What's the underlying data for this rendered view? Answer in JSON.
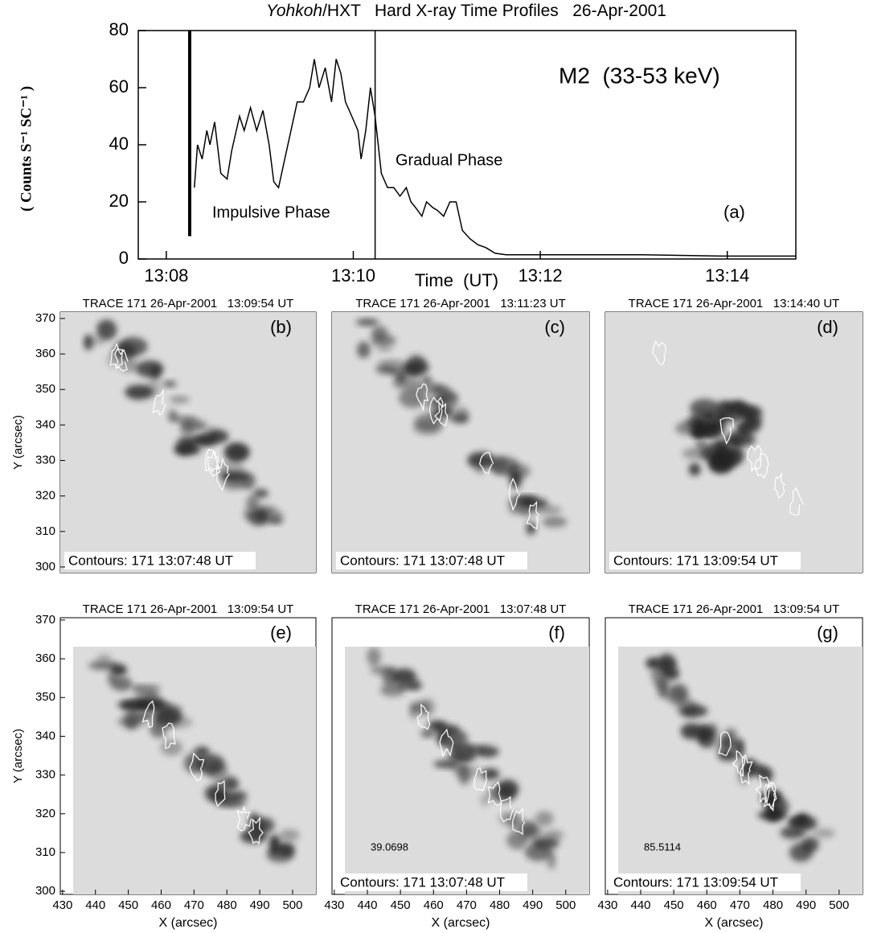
{
  "chart_data": [
    {
      "type": "line",
      "title_italic": "Yohkoh",
      "title": "/HXT   Hard X-ray Time Profiles   26-Apr-2001",
      "ylabel": "( Counts S⁻¹ SC⁻¹ )",
      "xlabel": "Time  (UT)",
      "annotations": [
        "Impulsive Phase",
        "Gradual Phase",
        "M2  (33-53 keV)",
        "(a)"
      ],
      "color": "#000000",
      "x": [
        "13:08:18",
        "13:08:20",
        "13:08:23",
        "13:08:26",
        "13:08:28",
        "13:08:31",
        "13:08:35",
        "13:08:39",
        "13:08:42",
        "13:08:47",
        "13:08:50",
        "13:08:54",
        "13:08:58",
        "13:09:02",
        "13:09:06",
        "13:09:09",
        "13:09:12",
        "13:09:16",
        "13:09:20",
        "13:09:24",
        "13:09:28",
        "13:09:32",
        "13:09:35",
        "13:09:38",
        "13:09:42",
        "13:09:46",
        "13:09:49",
        "13:09:52",
        "13:09:55",
        "13:09:59",
        "13:10:03",
        "13:10:05",
        "13:10:08",
        "13:10:11",
        "13:10:14",
        "13:10:18",
        "13:10:22",
        "13:10:26",
        "13:10:30",
        "13:10:34",
        "13:10:37",
        "13:10:40",
        "13:10:44",
        "13:10:47",
        "13:10:51",
        "13:10:54",
        "13:10:58",
        "13:11:02",
        "13:11:06",
        "13:11:10",
        "13:11:15",
        "13:11:20",
        "13:11:25",
        "13:11:31",
        "13:11:38",
        "13:12:14",
        "13:13:06",
        "13:13:58",
        "13:14:44"
      ],
      "values": [
        25,
        40,
        35,
        45,
        40,
        48,
        30,
        28,
        38,
        50,
        45,
        53,
        45,
        52,
        40,
        27,
        25,
        35,
        45,
        55,
        55,
        60,
        70,
        60,
        67,
        55,
        70,
        65,
        55,
        50,
        45,
        35,
        45,
        60,
        50,
        30,
        25,
        25,
        22,
        25,
        20,
        18,
        15,
        20,
        18,
        17,
        15,
        20,
        20,
        10,
        7,
        5,
        4,
        2,
        1.5,
        1.5,
        1.5,
        1,
        1
      ],
      "markers": [
        "13:08:15",
        "13:10:14"
      ],
      "xlim": [
        "13:07:42",
        "13:14:44"
      ],
      "xticks": [
        "13:08",
        "13:10",
        "13:12",
        "13:14"
      ],
      "ylim": [
        0,
        80
      ],
      "yticks": [
        0,
        20,
        40,
        60,
        80
      ]
    },
    {
      "type": "image",
      "title": "TRACE 171 26-Apr-2001   13:09:54 UT",
      "label": "(b)",
      "caption": "Contours: 171 13:07:48 UT",
      "ylabel": "Y (arcsec)",
      "ylim": [
        298.4,
        371.8
      ],
      "yticks": [
        300,
        310,
        320,
        330,
        340,
        350,
        360,
        370
      ]
    },
    {
      "type": "image",
      "title": "TRACE 171 26-Apr-2001   13:11:23 UT",
      "label": "(c)",
      "caption": "Contours: 171 13:07:48 UT"
    },
    {
      "type": "image",
      "title": "TRACE 171 26-Apr-2001   13:14:40 UT",
      "label": "(d)",
      "caption": "Contours: 171 13:09:54 UT"
    },
    {
      "type": "image",
      "title": "TRACE 171 26-Apr-2001   13:09:54 UT",
      "label": "(e)",
      "ylabel": "Y (arcsec)",
      "ylim": [
        299.2,
        370.6
      ],
      "yticks": [
        300,
        310,
        320,
        330,
        340,
        350,
        360,
        370
      ],
      "xlabel": "X (arcsec)",
      "xlim": [
        429.3,
        507.1
      ],
      "xticks": [
        430,
        440,
        450,
        460,
        470,
        480,
        490,
        500
      ]
    },
    {
      "type": "image",
      "title": "TRACE 171 26-Apr-2001   13:07:48 UT",
      "label": "(f)",
      "caption": "Contours: 171 13:07:48 UT",
      "annotation": "39.0698",
      "xlabel": "X (arcsec)",
      "xlim": [
        429.3,
        507.1
      ],
      "xticks": [
        430,
        440,
        450,
        460,
        470,
        480,
        490,
        500
      ]
    },
    {
      "type": "image",
      "title": "TRACE 171 26-Apr-2001   13:09:54 UT",
      "label": "(g)",
      "caption": "Contours: 171 13:09:54 UT",
      "annotation": "85.5114",
      "xlabel": "X (arcsec)",
      "xlim": [
        429.3,
        507.1
      ],
      "xticks": [
        430,
        440,
        450,
        460,
        470,
        480,
        490,
        500
      ]
    }
  ]
}
